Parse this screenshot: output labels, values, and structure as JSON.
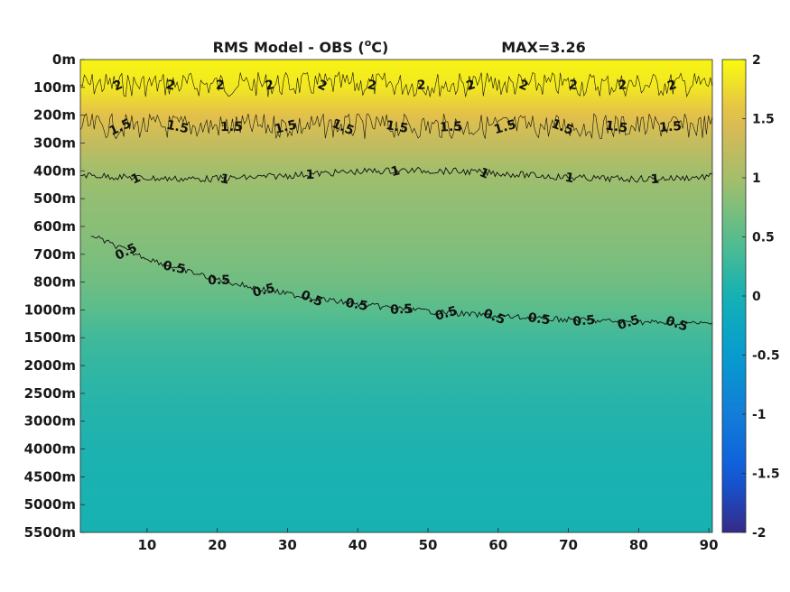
{
  "chart_data": {
    "type": "heatmap",
    "title": "RMS Model - OBS (",
    "title_unit_sup": "o",
    "title_unit": "C)",
    "max_label": "MAX=3.26",
    "x": {
      "ticks": [
        10,
        20,
        30,
        40,
        50,
        60,
        70,
        80,
        90
      ],
      "range": [
        0.5,
        90.5
      ]
    },
    "y": {
      "ticks": [
        "0m",
        "100m",
        "200m",
        "300m",
        "400m",
        "500m",
        "600m",
        "700m",
        "800m",
        "1000m",
        "1500m",
        "2000m",
        "2500m",
        "3000m",
        "4000m",
        "4500m",
        "5000m",
        "5500m"
      ],
      "note": "non-uniform depth axis, tick labels equally spaced"
    },
    "colorbar": {
      "colormap": "parula",
      "range": [
        -2,
        2
      ],
      "ticks": [
        "2",
        "1.5",
        "1",
        "0.5",
        "0",
        "-0.5",
        "-1",
        "-1.5",
        "-2"
      ]
    },
    "contours": [
      {
        "level": 2,
        "depth_index_approx": [
          0.5,
          1.3
        ],
        "labels": [
          "2",
          "2",
          "2",
          "2",
          "2",
          "2",
          "2",
          "2",
          "2",
          "2",
          "2",
          "2"
        ]
      },
      {
        "level": 1.5,
        "depth_index_approx": [
          1.8,
          3.0
        ],
        "labels": [
          "1.5",
          "1.5",
          "1.5",
          "1.5",
          "1.5",
          "1.5",
          "1.5",
          "1.5",
          "1.5",
          "1.5",
          "1.5"
        ]
      },
      {
        "level": 1,
        "depth_index_approx": [
          3.9,
          4.5
        ],
        "labels": [
          "1",
          "1",
          "1",
          "1",
          "1",
          "1",
          "1"
        ]
      },
      {
        "level": 0.5,
        "depth_index_approx": [
          6.3,
          9.5
        ],
        "labels": [
          "0.5",
          "0.5",
          "0.5",
          "0.5",
          "0.5",
          "0.5",
          "0.5",
          "0.5",
          "0.5",
          "0.5",
          "0.5",
          "0.5",
          "0.5"
        ]
      }
    ],
    "value_by_depth_index": [
      {
        "depth": "0m",
        "value": 1.95
      },
      {
        "depth": "100m",
        "value": 1.85
      },
      {
        "depth": "200m",
        "value": 1.55
      },
      {
        "depth": "300m",
        "value": 1.25
      },
      {
        "depth": "400m",
        "value": 0.98
      },
      {
        "depth": "500m",
        "value": 0.88
      },
      {
        "depth": "600m",
        "value": 0.82
      },
      {
        "depth": "700m",
        "value": 0.75
      },
      {
        "depth": "800m",
        "value": 0.65
      },
      {
        "depth": "1000m",
        "value": 0.5
      },
      {
        "depth": "1500m",
        "value": 0.32
      },
      {
        "depth": "2000m",
        "value": 0.22
      },
      {
        "depth": "2500m",
        "value": 0.15
      },
      {
        "depth": "3000m",
        "value": 0.1
      },
      {
        "depth": "4000m",
        "value": 0.06
      },
      {
        "depth": "4500m",
        "value": 0.04
      },
      {
        "depth": "5000m",
        "value": 0.03
      },
      {
        "depth": "5500m",
        "value": 0.02
      }
    ]
  }
}
